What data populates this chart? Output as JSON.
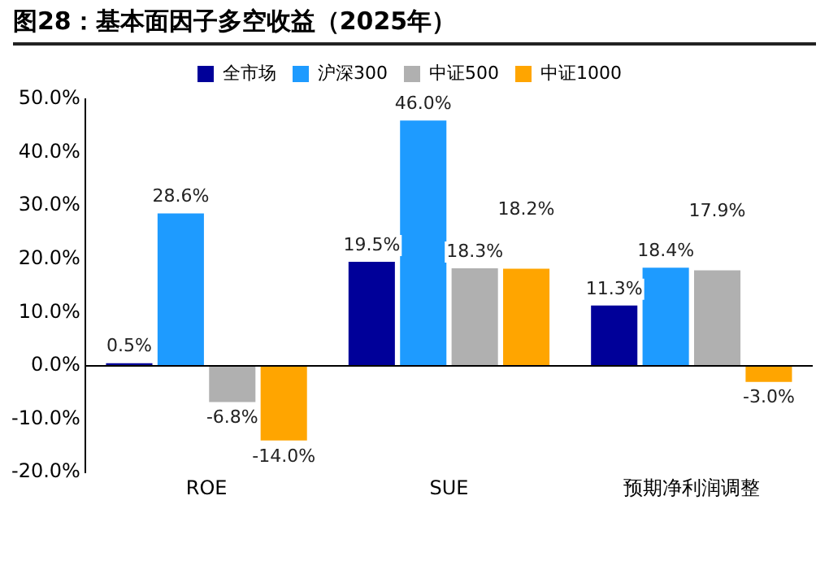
{
  "chart_data": {
    "type": "bar",
    "title": "图28：基本面因子多空收益（2025年）",
    "categories": [
      "ROE",
      "SUE",
      "预期净利润调整"
    ],
    "series": [
      {
        "name": "全市场",
        "color": "#000099",
        "values": [
          0.5,
          19.5,
          11.3
        ],
        "value_labels": [
          "0.5%",
          "19.5%",
          "11.3%"
        ]
      },
      {
        "name": "沪深300",
        "color": "#1e9bff",
        "values": [
          28.6,
          46.0,
          18.4
        ],
        "value_labels": [
          "28.6%",
          "46.0%",
          "18.4%"
        ]
      },
      {
        "name": "中证500",
        "color": "#b0b0b0",
        "values": [
          -6.8,
          18.3,
          17.9
        ],
        "value_labels": [
          "-6.8%",
          "18.3%",
          "17.9%"
        ]
      },
      {
        "name": "中证1000",
        "color": "#ffa500",
        "values": [
          -14.0,
          18.2,
          -3.0
        ],
        "value_labels": [
          "-14.0%",
          "18.2%",
          "-3.0%"
        ]
      }
    ],
    "ylim": [
      -20,
      50
    ],
    "yticks": [
      {
        "value": -20,
        "label": "-20.0%"
      },
      {
        "value": -10,
        "label": "-10.0%"
      },
      {
        "value": 0,
        "label": "0.0%"
      },
      {
        "value": 10,
        "label": "10.0%"
      },
      {
        "value": 20,
        "label": "20.0%"
      },
      {
        "value": 30,
        "label": "30.0%"
      },
      {
        "value": 40,
        "label": "40.0%"
      },
      {
        "value": 50,
        "label": "50.0%"
      }
    ],
    "ref_lines": [
      {
        "axis": "y",
        "value": 0,
        "color": "#000000"
      }
    ],
    "grid": false,
    "legend": "top"
  }
}
